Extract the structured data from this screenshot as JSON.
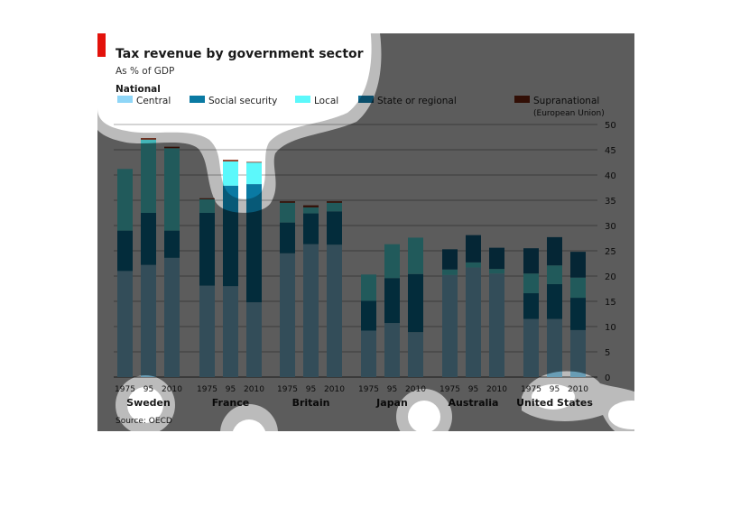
{
  "chart_data": {
    "type": "bar",
    "stacked": true,
    "title": "Tax revenue by government sector",
    "subtitle": "As % of GDP",
    "legend_heading": "National",
    "legend": [
      {
        "key": "central",
        "label": "Central",
        "color": "#8fd6f7"
      },
      {
        "key": "social",
        "label": "Social security",
        "color": "#0a7aa3"
      },
      {
        "key": "local",
        "label": "Local",
        "color": "#5cf8fb"
      },
      {
        "key": "state",
        "label": "State or regional",
        "color": "#0e6b92"
      },
      {
        "key": "supra",
        "label": "Supranational",
        "sublabel": "(European Union)",
        "color": "#8a2a12"
      }
    ],
    "stack_order": [
      "central",
      "social",
      "local",
      "state",
      "supra"
    ],
    "ylim": [
      0,
      50
    ],
    "yticks": [
      "0",
      "5",
      "10",
      "15",
      "20",
      "25",
      "30",
      "35",
      "40",
      "45",
      "50"
    ],
    "ytick_values": [
      0,
      5,
      10,
      15,
      20,
      25,
      30,
      35,
      40,
      45,
      50
    ],
    "grid": true,
    "yaxis_side": "right",
    "year_labels": [
      "1975",
      "95",
      "2010"
    ],
    "groups": [
      {
        "country": "Sweden",
        "bars": [
          {
            "year": "1975",
            "central": 21.0,
            "social": 8.0,
            "local": 12.2,
            "state": 0,
            "supra": 0
          },
          {
            "year": "95",
            "central": 22.2,
            "social": 10.3,
            "local": 14.5,
            "state": 0,
            "supra": 0.3
          },
          {
            "year": "2010",
            "central": 23.6,
            "social": 5.4,
            "local": 16.3,
            "state": 0,
            "supra": 0.3
          }
        ]
      },
      {
        "country": "France",
        "bars": [
          {
            "year": "1975",
            "central": 18.1,
            "social": 14.4,
            "local": 2.7,
            "state": 0,
            "supra": 0.2
          },
          {
            "year": "95",
            "central": 18.0,
            "social": 19.9,
            "local": 4.8,
            "state": 0,
            "supra": 0.3
          },
          {
            "year": "2010",
            "central": 14.8,
            "social": 23.4,
            "local": 4.3,
            "state": 0,
            "supra": 0.1
          }
        ]
      },
      {
        "country": "Britain",
        "bars": [
          {
            "year": "1975",
            "central": 24.5,
            "social": 6.1,
            "local": 3.9,
            "state": 0,
            "supra": 0.3
          },
          {
            "year": "95",
            "central": 26.3,
            "social": 6.1,
            "local": 1.2,
            "state": 0,
            "supra": 0.4
          },
          {
            "year": "2010",
            "central": 26.2,
            "social": 6.6,
            "local": 1.7,
            "state": 0,
            "supra": 0.3
          }
        ]
      },
      {
        "country": "Japan",
        "bars": [
          {
            "year": "1975",
            "central": 9.2,
            "social": 5.9,
            "local": 5.2,
            "state": 0,
            "supra": 0
          },
          {
            "year": "95",
            "central": 10.7,
            "social": 8.9,
            "local": 6.7,
            "state": 0,
            "supra": 0
          },
          {
            "year": "2010",
            "central": 8.9,
            "social": 11.5,
            "local": 7.2,
            "state": 0,
            "supra": 0
          }
        ]
      },
      {
        "country": "Australia",
        "bars": [
          {
            "year": "1975",
            "central": 20.2,
            "social": 0,
            "local": 1.1,
            "state": 4.0,
            "supra": 0
          },
          {
            "year": "95",
            "central": 21.7,
            "social": 0,
            "local": 1.0,
            "state": 5.4,
            "supra": 0
          },
          {
            "year": "2010",
            "central": 20.5,
            "social": 0,
            "local": 0.9,
            "state": 4.2,
            "supra": 0
          }
        ]
      },
      {
        "country": "United States",
        "bars": [
          {
            "year": "1975",
            "central": 11.5,
            "social": 5.1,
            "local": 3.9,
            "state": 5.0,
            "supra": 0
          },
          {
            "year": "95",
            "central": 11.5,
            "social": 6.9,
            "local": 3.7,
            "state": 5.6,
            "supra": 0
          },
          {
            "year": "2010",
            "central": 9.3,
            "social": 6.4,
            "local": 4.0,
            "state": 5.1,
            "supra": 0
          }
        ]
      }
    ],
    "source": "Source: OECD"
  }
}
